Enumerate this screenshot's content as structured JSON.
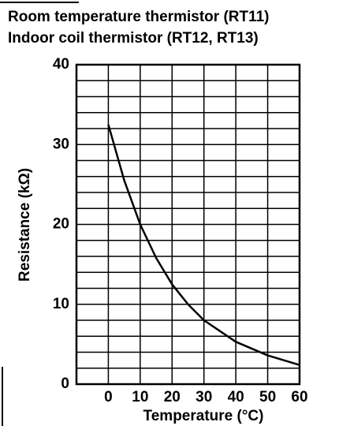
{
  "chart_data": {
    "type": "line",
    "title": "Room temperature thermistor (RT11)",
    "subtitle": "Indoor coil thermistor (RT12, RT13)",
    "x_label": "Temperature (°C)",
    "y_label": "Resistance (kΩ)",
    "x": [
      0,
      5,
      10,
      15,
      20,
      25,
      30,
      40,
      50,
      60
    ],
    "series": [
      {
        "color": "#000000",
        "values": [
          32.5,
          25.5,
          20,
          15.8,
          12.5,
          10,
          8,
          5.3,
          3.6,
          2.4
        ]
      }
    ],
    "xlim": [
      -10,
      60
    ],
    "xticks": [
      0,
      10,
      20,
      30,
      40,
      50,
      60
    ],
    "ylim": [
      0,
      40
    ],
    "yticks": [
      0,
      10,
      20,
      30,
      40
    ],
    "ygrid": [
      2,
      4,
      6,
      8,
      12,
      14,
      16,
      18,
      22,
      24,
      26,
      28,
      32,
      34,
      36,
      38
    ],
    "grid": true
  }
}
